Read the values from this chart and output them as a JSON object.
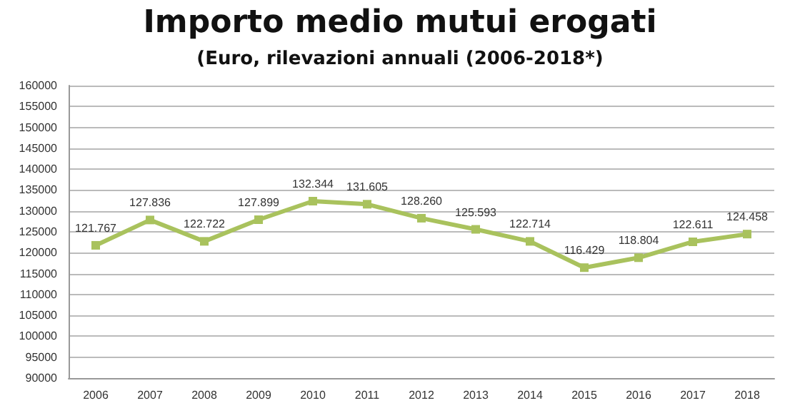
{
  "chart_data": {
    "type": "line",
    "title": "Importo medio mutui erogati",
    "subtitle": "(Euro, rilevazioni annuali (2006-2018*)",
    "categories": [
      "2006",
      "2007",
      "2008",
      "2009",
      "2010",
      "2011",
      "2012",
      "2013",
      "2014",
      "2015",
      "2016",
      "2017",
      "2018"
    ],
    "series": [
      {
        "color": "#a9c25d",
        "values": [
          121767,
          127836,
          122722,
          127899,
          132344,
          131605,
          128260,
          125593,
          122714,
          116429,
          118804,
          122611,
          124458
        ],
        "value_labels": [
          "121.767",
          "127.836",
          "122.722",
          "127.899",
          "132.344",
          "131.605",
          "128.260",
          "125.593",
          "122.714",
          "116.429",
          "118.804",
          "122.611",
          "124.458"
        ]
      }
    ],
    "ylim": [
      90000,
      160000
    ],
    "yticks": [
      90000,
      95000,
      100000,
      105000,
      110000,
      115000,
      120000,
      125000,
      130000,
      135000,
      140000,
      145000,
      150000,
      155000,
      160000
    ],
    "grid": "y",
    "marker": "square",
    "line_style": "solid"
  }
}
